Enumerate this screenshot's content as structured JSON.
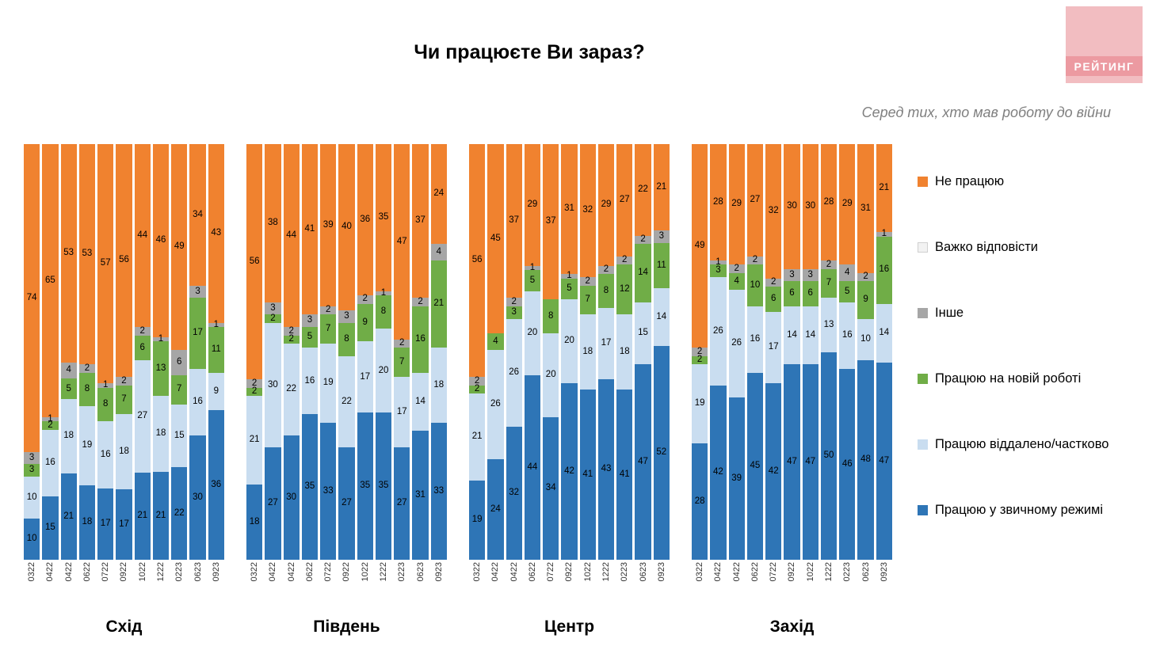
{
  "title": "Чи працюєте Ви зараз?",
  "subtitle": "Серед тих, хто мав роботу до війни",
  "logo_text": "РЕЙТИНГ",
  "colors": {
    "notworking": "#F0822F",
    "hard": "#F2F2F2",
    "other": "#A6A6A6",
    "newjob": "#70AD47",
    "remote": "#C9DDF0",
    "normal": "#2E75B6"
  },
  "legend": [
    {
      "key": "notworking",
      "label": "Не працюю"
    },
    {
      "key": "hard",
      "label": "Важко відповісти"
    },
    {
      "key": "other",
      "label": "Інше"
    },
    {
      "key": "newjob",
      "label": "Працюю на новій роботі"
    },
    {
      "key": "remote",
      "label": "Працюю віддалено/частково"
    },
    {
      "key": "normal",
      "label": "Працюю у звичному режимі"
    }
  ],
  "chart_data": {
    "type": "bar",
    "stacked": true,
    "unit": "percent",
    "ylim": [
      0,
      100
    ],
    "grid": false,
    "legend_position": "right",
    "categories": [
      "0322",
      "0422",
      "0422",
      "0622",
      "0722",
      "0922",
      "1022",
      "1222",
      "0223",
      "0623",
      "0923"
    ],
    "series_order": [
      "normal",
      "remote",
      "newjob",
      "other",
      "notworking"
    ],
    "series_labels": {
      "normal": "Працюю у звичному режимі",
      "remote": "Працюю віддалено/частково",
      "newjob": "Працюю на новій роботі",
      "other": "Інше",
      "hard": "Важко відповісти",
      "notworking": "Не працюю"
    },
    "groups": [
      {
        "name": "Схід",
        "series": {
          "normal": [
            10,
            15,
            21,
            18,
            17,
            17,
            21,
            21,
            22,
            30,
            36
          ],
          "remote": [
            10,
            16,
            18,
            19,
            16,
            18,
            27,
            18,
            15,
            16,
            9
          ],
          "newjob": [
            3,
            2,
            5,
            8,
            8,
            7,
            6,
            13,
            7,
            17,
            11
          ],
          "other": [
            3,
            1,
            4,
            2,
            1,
            2,
            2,
            1,
            6,
            3,
            1
          ],
          "notworking": [
            74,
            65,
            53,
            53,
            57,
            56,
            44,
            46,
            49,
            34,
            43
          ]
        }
      },
      {
        "name": "Південь",
        "series": {
          "normal": [
            18,
            27,
            30,
            35,
            33,
            27,
            35,
            35,
            27,
            31,
            33
          ],
          "remote": [
            21,
            30,
            22,
            16,
            19,
            22,
            17,
            20,
            17,
            14,
            18
          ],
          "newjob": [
            2,
            2,
            2,
            5,
            7,
            8,
            9,
            8,
            7,
            16,
            21
          ],
          "other": [
            2,
            3,
            2,
            3,
            2,
            3,
            2,
            1,
            2,
            2,
            4
          ],
          "notworking": [
            56,
            38,
            44,
            41,
            39,
            40,
            36,
            35,
            47,
            37,
            24
          ]
        }
      },
      {
        "name": "Центр",
        "series": {
          "normal": [
            19,
            24,
            32,
            44,
            34,
            42,
            41,
            43,
            41,
            47,
            52
          ],
          "remote": [
            21,
            26,
            26,
            20,
            20,
            20,
            18,
            17,
            18,
            15,
            14
          ],
          "newjob": [
            2,
            4,
            3,
            5,
            8,
            5,
            7,
            8,
            12,
            14,
            11
          ],
          "other": [
            2,
            0,
            2,
            1,
            0,
            1,
            2,
            2,
            2,
            2,
            3
          ],
          "notworking": [
            56,
            45,
            37,
            29,
            37,
            31,
            32,
            29,
            27,
            22,
            21
          ]
        }
      },
      {
        "name": "Захід",
        "series": {
          "normal": [
            28,
            42,
            39,
            45,
            42,
            47,
            47,
            50,
            46,
            48,
            47
          ],
          "remote": [
            19,
            26,
            26,
            16,
            17,
            14,
            14,
            13,
            16,
            10,
            14
          ],
          "newjob": [
            2,
            3,
            4,
            10,
            6,
            6,
            6,
            7,
            5,
            9,
            16
          ],
          "other": [
            2,
            1,
            2,
            2,
            2,
            3,
            3,
            2,
            4,
            2,
            1
          ],
          "notworking": [
            49,
            28,
            29,
            27,
            32,
            30,
            30,
            28,
            29,
            31,
            21
          ]
        }
      }
    ]
  }
}
